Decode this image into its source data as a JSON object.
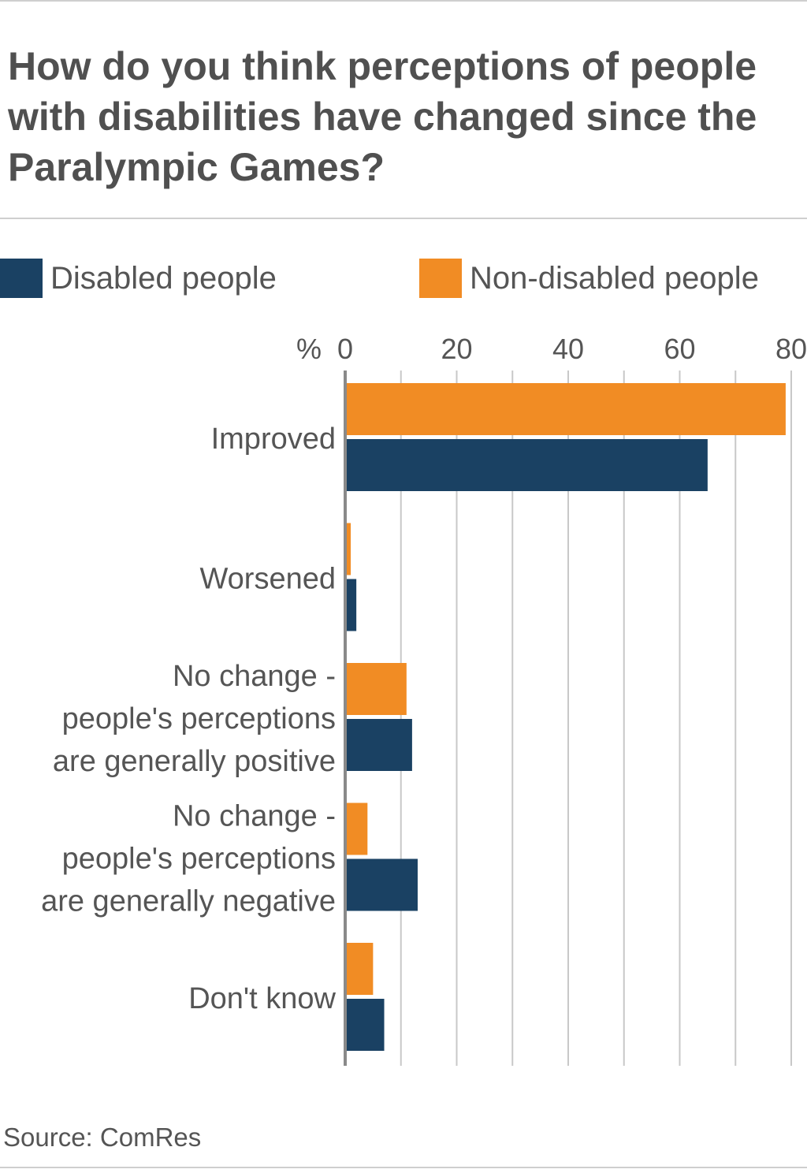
{
  "title": "How do you think perceptions of people with disabilities have changed since the Paralympic Games?",
  "source": "Source: ComRes",
  "colors": {
    "disabled": "#1a4163",
    "non_disabled": "#f18c24",
    "grid": "#c8c8c8",
    "axis": "#8a8a8a",
    "text": "#555555"
  },
  "chart_data": {
    "type": "bar",
    "orientation": "horizontal",
    "axis_unit_label": "%",
    "xlim": [
      0,
      80
    ],
    "ticks": [
      0,
      20,
      40,
      60,
      80
    ],
    "tick_labels": [
      "0",
      "20",
      "40",
      "60",
      "80"
    ],
    "grid": true,
    "legend_position": "top",
    "categories": [
      [
        "Improved"
      ],
      [
        "Worsened"
      ],
      [
        "No change -",
        "people's perceptions",
        "are generally positive"
      ],
      [
        "No change -",
        "people's perceptions",
        "are generally negative"
      ],
      [
        "Don't know"
      ]
    ],
    "series": [
      {
        "name": "Non-disabled people",
        "color": "#f18c24",
        "values": [
          79,
          1,
          11,
          4,
          5
        ]
      },
      {
        "name": "Disabled people",
        "color": "#1a4163",
        "values": [
          65,
          2,
          12,
          13,
          7
        ]
      }
    ]
  }
}
